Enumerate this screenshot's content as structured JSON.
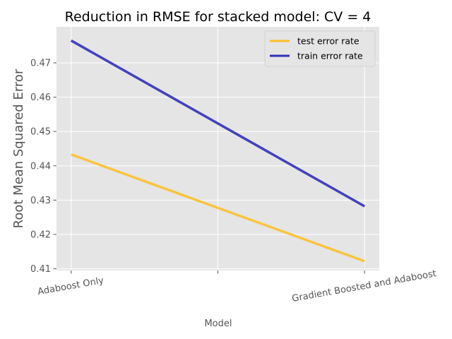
{
  "chart_data": {
    "type": "line",
    "title": "Reduction in RMSE for stacked model: CV = 4",
    "xlabel": "Model",
    "ylabel": "Root Mean Squared Error",
    "categories": [
      "Adaboost Only",
      "",
      "Gradient Boosted and Adaboost"
    ],
    "x_positions": [
      0,
      0.5,
      1
    ],
    "xlim": [
      -0.05,
      1.05
    ],
    "ylim": [
      0.4095,
      0.4805
    ],
    "yticks": [
      0.41,
      0.42,
      0.43,
      0.44,
      0.45,
      0.46,
      0.47
    ],
    "ytick_labels": [
      "0.41",
      "0.42",
      "0.43",
      "0.44",
      "0.45",
      "0.46",
      "0.47"
    ],
    "grid": true,
    "legend_position": "top-right",
    "series": [
      {
        "name": "test error rate",
        "x": [
          0,
          1
        ],
        "values": [
          0.4433,
          0.4122
        ],
        "color": "#fbc02d"
      },
      {
        "name": "train error rate",
        "x": [
          0,
          1
        ],
        "values": [
          0.4765,
          0.4282
        ],
        "color": "#3030b8"
      }
    ]
  }
}
